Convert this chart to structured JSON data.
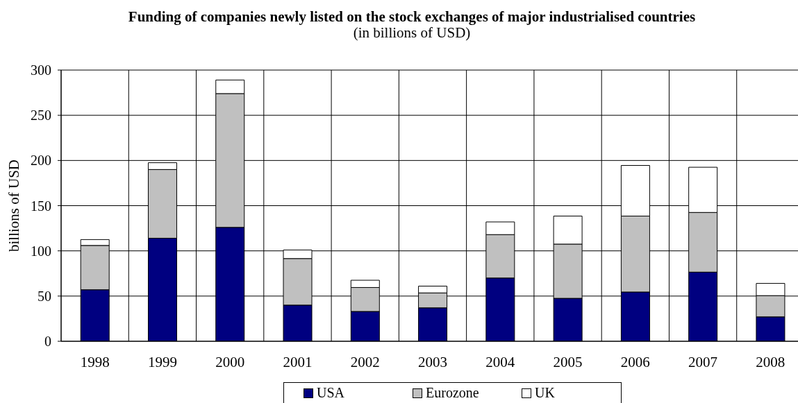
{
  "chart_data": {
    "type": "bar",
    "title": "Funding of companies newly listed on the stock exchanges of major industrialised countries",
    "subtitle": "(in billions of USD)",
    "ylabel": "billions of USD",
    "categories": [
      "1998",
      "1999",
      "2000",
      "2001",
      "2002",
      "2003",
      "2004",
      "2005",
      "2006",
      "2007",
      "2008"
    ],
    "series": [
      {
        "name": "USA",
        "color": "#000080",
        "values": [
          57,
          114,
          126,
          40,
          33,
          37,
          70,
          47.5,
          54.5,
          76.5,
          27
        ]
      },
      {
        "name": "Eurozone",
        "color": "#c0c0c0",
        "values": [
          49,
          76,
          148,
          51.5,
          26.5,
          16.5,
          48,
          60,
          84,
          66,
          23.5
        ]
      },
      {
        "name": "UK",
        "color": "#ffffff",
        "values": [
          6.5,
          7.5,
          15,
          9.5,
          8,
          7.5,
          14,
          31,
          56,
          50,
          13.5
        ]
      }
    ],
    "stacked": true,
    "ylim": [
      0,
      300
    ],
    "yticks": [
      0,
      50,
      100,
      150,
      200,
      250,
      300
    ],
    "grid": true,
    "legend": "bottom"
  }
}
